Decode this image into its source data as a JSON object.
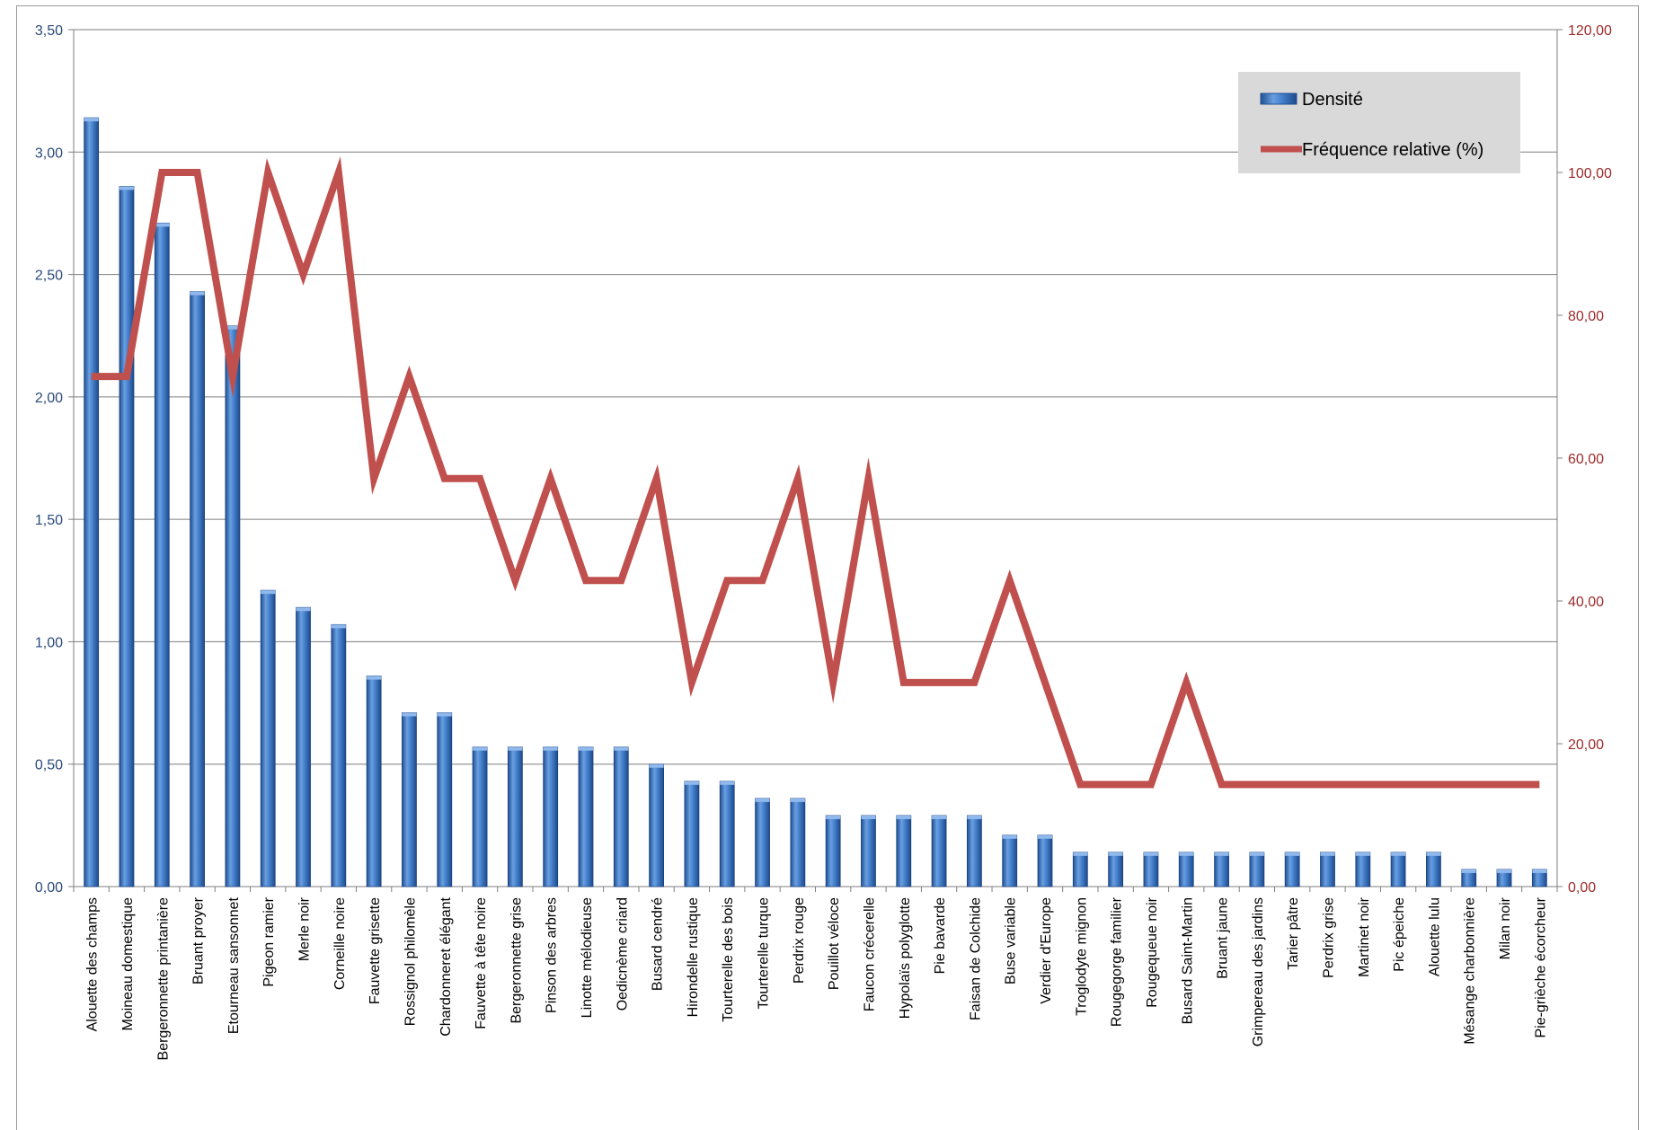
{
  "chart_data": {
    "type": "bar",
    "categories": [
      "Alouette des champs",
      "Moineau domestique",
      "Bergeronnette printanière",
      "Bruant proyer",
      "Etourneau sansonnet",
      "Pigeon ramier",
      "Merle noir",
      "Corneille noire",
      "Fauvette grisette",
      "Rossignol philomèle",
      "Chardonneret élégant",
      "Fauvette à tête noire",
      "Bergeronnette grise",
      "Pinson des arbres",
      "Linotte mélodieuse",
      "Oedicnème criard",
      "Busard cendré",
      "Hirondelle rustique",
      "Tourterelle des bois",
      "Tourterelle turque",
      "Perdrix rouge",
      "Pouillot véloce",
      "Faucon crécerelle",
      "Hypolaïs polyglotte",
      "Pie bavarde",
      "Faisan de Colchide",
      "Buse variable",
      "Verdier d'Europe",
      "Troglodyte mignon",
      "Rougegorge familier",
      "Rougequeue noir",
      "Busard Saint-Martin",
      "Bruant jaune",
      "Grimpereau des jardins",
      "Tarier pâtre",
      "Perdrix grise",
      "Martinet noir",
      "Pic épeiche",
      "Alouette lulu",
      "Mésange charbonnière",
      "Milan noir",
      "Pie-grièche écorcheur"
    ],
    "series": [
      {
        "name": "Densité",
        "type": "bar",
        "axis": "left",
        "color": "#3a74c4",
        "values": [
          3.14,
          2.86,
          2.71,
          2.43,
          2.29,
          1.21,
          1.14,
          1.07,
          0.86,
          0.71,
          0.71,
          0.57,
          0.57,
          0.57,
          0.57,
          0.57,
          0.5,
          0.43,
          0.43,
          0.36,
          0.36,
          0.29,
          0.29,
          0.29,
          0.29,
          0.29,
          0.21,
          0.21,
          0.14,
          0.14,
          0.14,
          0.14,
          0.14,
          0.14,
          0.14,
          0.14,
          0.14,
          0.14,
          0.14,
          0.07,
          0.07,
          0.07
        ]
      },
      {
        "name": "Fréquence relative (%)",
        "type": "line",
        "axis": "right",
        "color": "#c0504d",
        "values": [
          71.43,
          71.43,
          100,
          100,
          71.43,
          100,
          85.71,
          100,
          57.14,
          71.43,
          57.14,
          57.14,
          42.86,
          57.14,
          42.86,
          42.86,
          57.14,
          28.57,
          42.86,
          42.86,
          57.14,
          28.57,
          57.14,
          28.57,
          28.57,
          28.57,
          42.86,
          28.57,
          14.29,
          14.29,
          14.29,
          28.57,
          14.29,
          14.29,
          14.29,
          14.29,
          14.29,
          14.29,
          14.29,
          14.29,
          14.29,
          14.29
        ]
      }
    ],
    "y_left": {
      "min": 0,
      "max": 3.5,
      "step": 0.5,
      "tick_labels": [
        "0,00",
        "0,50",
        "1,00",
        "1,50",
        "2,00",
        "2,50",
        "3,00",
        "3,50"
      ]
    },
    "y_right": {
      "min": 0,
      "max": 120,
      "step": 20,
      "tick_labels": [
        "0,00",
        "20,00",
        "40,00",
        "60,00",
        "80,00",
        "100,00",
        "120,00"
      ]
    },
    "grid": true,
    "legend": {
      "position": "top-right",
      "background": "#d9d9d9"
    },
    "colors": {
      "left_axis_text": "#2b4a7a",
      "right_axis_text": "#9b2b2b",
      "gridline": "#7f7f7f"
    }
  }
}
